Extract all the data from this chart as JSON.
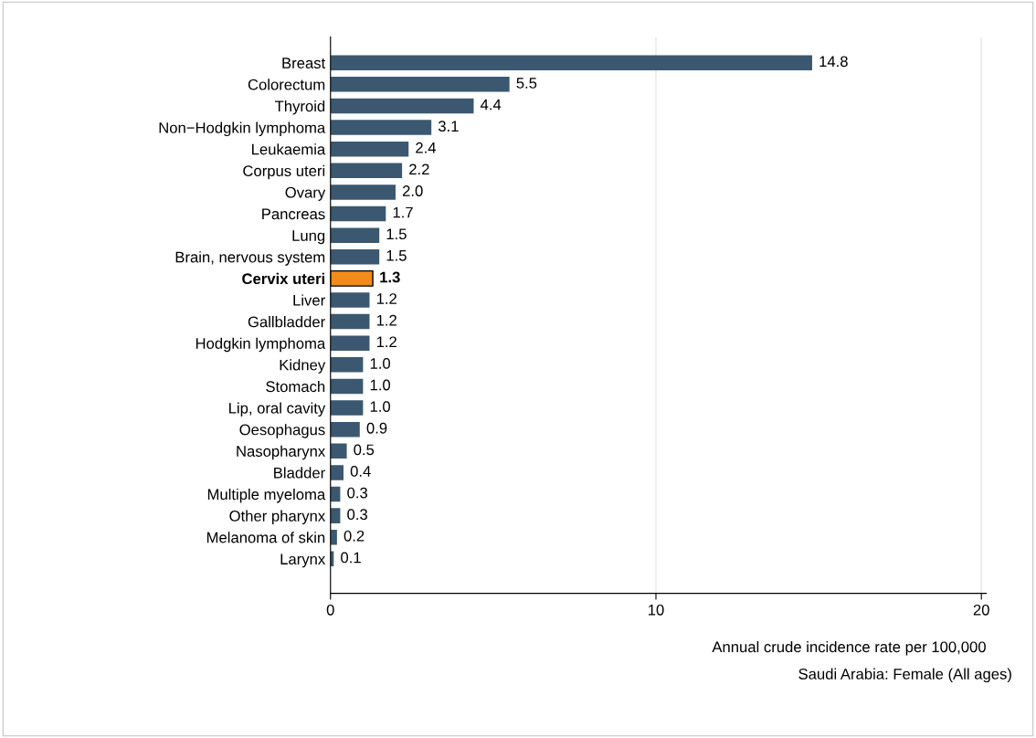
{
  "chart_data": {
    "type": "bar",
    "orientation": "horizontal",
    "categories": [
      "Breast",
      "Colorectum",
      "Thyroid",
      "Non−Hodgkin lymphoma",
      "Leukaemia",
      "Corpus uteri",
      "Ovary",
      "Pancreas",
      "Lung",
      "Brain, nervous system",
      "Cervix uteri",
      "Liver",
      "Gallbladder",
      "Hodgkin lymphoma",
      "Kidney",
      "Stomach",
      "Lip, oral cavity",
      "Oesophagus",
      "Nasopharynx",
      "Bladder",
      "Multiple myeloma",
      "Other pharynx",
      "Melanoma of skin",
      "Larynx"
    ],
    "values": [
      14.8,
      5.5,
      4.4,
      3.1,
      2.4,
      2.2,
      2.0,
      1.7,
      1.5,
      1.5,
      1.3,
      1.2,
      1.2,
      1.2,
      1.0,
      1.0,
      1.0,
      0.9,
      0.5,
      0.4,
      0.3,
      0.3,
      0.2,
      0.1
    ],
    "value_labels": [
      "14.8",
      "5.5",
      "4.4",
      "3.1",
      "2.4",
      "2.2",
      "2.0",
      "1.7",
      "1.5",
      "1.5",
      "1.3",
      "1.2",
      "1.2",
      "1.2",
      "1.0",
      "1.0",
      "1.0",
      "0.9",
      "0.5",
      "0.4",
      "0.3",
      "0.3",
      "0.2",
      "0.1"
    ],
    "colors": [
      "#3b5870",
      "#3b5870",
      "#3b5870",
      "#3b5870",
      "#3b5870",
      "#3b5870",
      "#3b5870",
      "#3b5870",
      "#3b5870",
      "#3b5870",
      "#f28b1c",
      "#3b5870",
      "#3b5870",
      "#3b5870",
      "#3b5870",
      "#3b5870",
      "#3b5870",
      "#3b5870",
      "#3b5870",
      "#3b5870",
      "#3b5870",
      "#3b5870",
      "#3b5870",
      "#3b5870"
    ],
    "xlim": [
      0,
      20.15
    ],
    "xticks": [
      0,
      10,
      20
    ],
    "grid": "x",
    "xlabel": "Annual crude incidence rate per 100,000",
    "annotations": [
      "Saudi Arabia: Female (All ages)"
    ]
  }
}
